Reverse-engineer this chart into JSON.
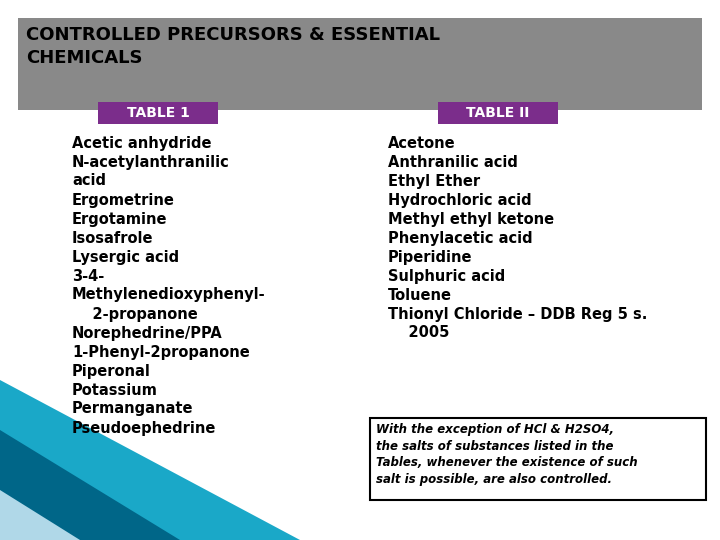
{
  "title": "CONTROLLED PRECURSORS & ESSENTIAL\nCHEMICALS",
  "title_bg": "#898989",
  "title_color": "#000000",
  "table1_label": "TABLE 1",
  "table2_label": "TABLE II",
  "tab_bg": "#7B2D8B",
  "tab_color": "#FFFFFF",
  "table1_items": [
    "Acetic anhydride",
    "N-acetylanthranilic\nacid",
    "Ergometrine",
    "Ergotamine",
    "Isosafrole",
    "Lysergic acid",
    "3-4-\nMethylenedioxyphenyl-",
    "    2-propanone",
    "Norephedrine/PPA",
    "1-Phenyl-2propanone",
    "Piperonal",
    "Potassium\nPermanganate",
    "Pseudoephedrine"
  ],
  "table2_items": [
    "Acetone",
    "Anthranilic acid",
    "Ethyl Ether",
    "Hydrochloric acid",
    "Methyl ethyl ketone",
    "Phenylacetic acid",
    "Piperidine",
    "Sulphuric acid",
    "Toluene",
    "Thionyl Chloride – DDB Reg 5 s.\n    2005"
  ],
  "note_text": "With the exception of HCl & H2SO4,\nthe salts of substances listed in the\nTables, whenever the existence of such\nsalt is possible, are also controlled.",
  "bg_color": "#FFFFFF",
  "item_fontsize": 10.5,
  "tab_fontsize": 10,
  "title_fontsize": 13,
  "tri1_color": "#1AA8C8",
  "tri2_color": "#006688",
  "tri3_color": "#B0D8E8"
}
